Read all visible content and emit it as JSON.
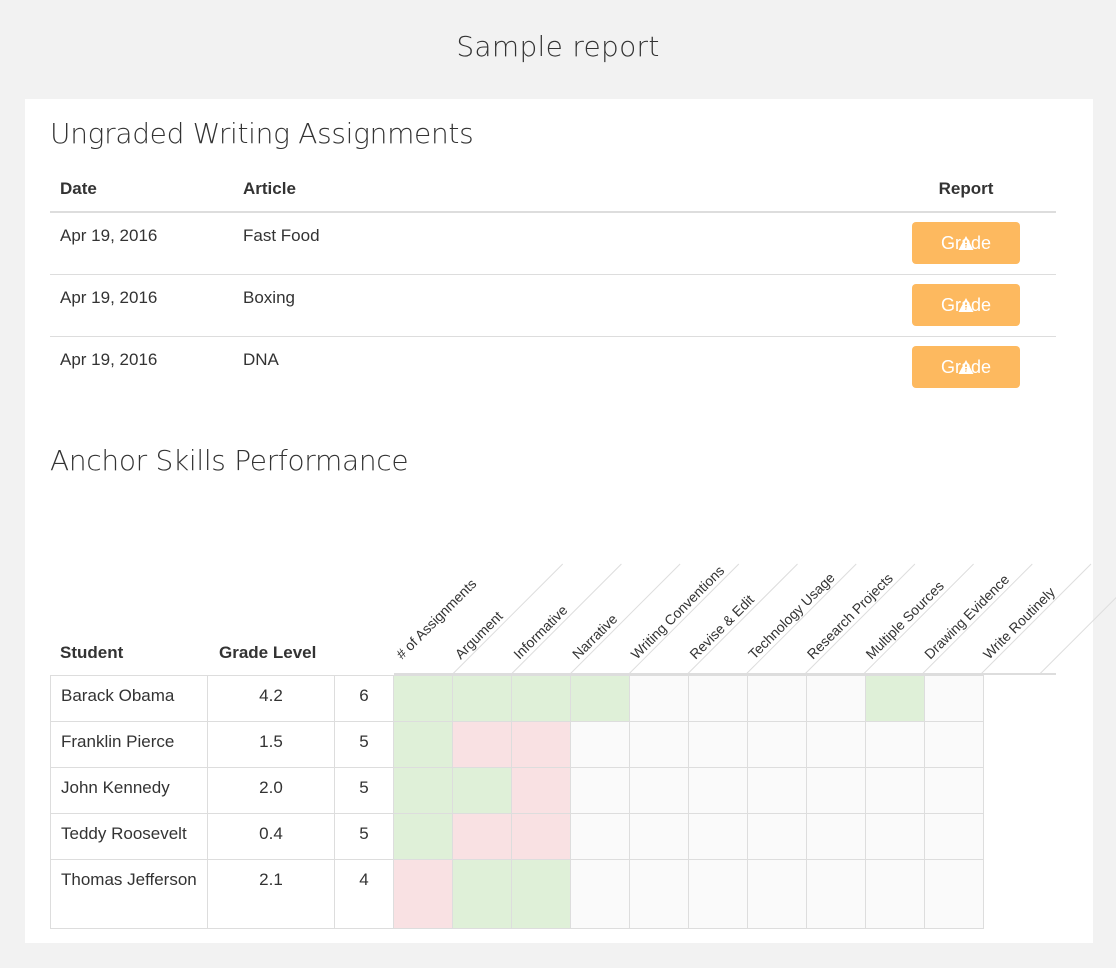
{
  "page": {
    "title": "Sample report"
  },
  "assignments": {
    "title": "Ungraded Writing Assignments",
    "headers": {
      "date": "Date",
      "article": "Article",
      "report": "Report"
    },
    "rows": [
      {
        "date": "Apr 19, 2016",
        "article": "Fast Food",
        "button": "Grade"
      },
      {
        "date": "Apr 19, 2016",
        "article": "Boxing",
        "button": "Grade"
      },
      {
        "date": "Apr 19, 2016",
        "article": "DNA",
        "button": "Grade"
      }
    ]
  },
  "skills": {
    "title": "Anchor Skills Performance",
    "headers": {
      "student": "Student",
      "grade_level": "Grade Level",
      "columns": [
        "# of Assignments",
        "Argument",
        "Informative",
        "Narrative",
        "Writing Conventions",
        "Revise & Edit",
        "Technology Usage",
        "Research Projects",
        "Multiple Sources",
        "Drawing Evidence",
        "Write Routinely"
      ]
    },
    "rows": [
      {
        "student": "Barack Obama",
        "grade_level": "4.2",
        "count": "6",
        "cells": [
          "g",
          "g",
          "g",
          "g",
          "n",
          "n",
          "n",
          "n",
          "g",
          "n"
        ]
      },
      {
        "student": "Franklin Pierce",
        "grade_level": "1.5",
        "count": "5",
        "cells": [
          "g",
          "r",
          "r",
          "n",
          "n",
          "n",
          "n",
          "n",
          "n",
          "n"
        ]
      },
      {
        "student": "John Kennedy",
        "grade_level": "2.0",
        "count": "5",
        "cells": [
          "g",
          "g",
          "r",
          "n",
          "n",
          "n",
          "n",
          "n",
          "n",
          "n"
        ]
      },
      {
        "student": "Teddy Roosevelt",
        "grade_level": "0.4",
        "count": "5",
        "cells": [
          "g",
          "r",
          "r",
          "n",
          "n",
          "n",
          "n",
          "n",
          "n",
          "n"
        ]
      },
      {
        "student": "Thomas Jefferson",
        "grade_level": "2.1",
        "count": "4",
        "cells": [
          "r",
          "g",
          "g",
          "n",
          "n",
          "n",
          "n",
          "n",
          "n",
          "n"
        ]
      }
    ],
    "colors": {
      "good": "#dff0d8",
      "bad": "#f9e1e3",
      "none": "#fafafa"
    }
  },
  "colors": {
    "grade_button": "#fdb95f"
  }
}
